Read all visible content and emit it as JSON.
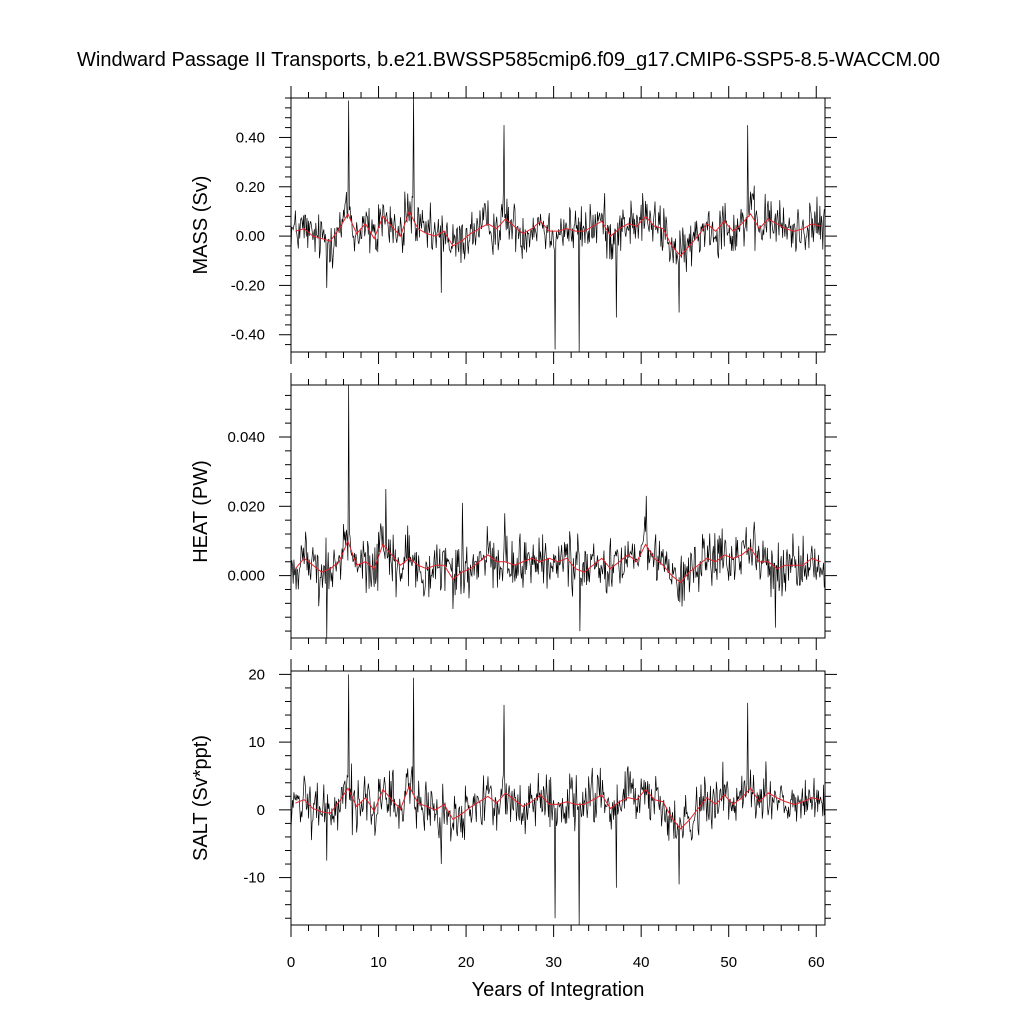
{
  "colors": {
    "raw_series": "#000000",
    "smooth_series": "#e8202a",
    "frame": "#000000"
  },
  "chart_data": {
    "title": "Windward Passage II Transports, b.e21.BWSSP585cmip6.f09_g17.CMIP6-SSP5-8.5-WACCM.00",
    "xlabel": "Years of Integration",
    "shared_x": {
      "range": [
        0,
        61
      ],
      "ticks": [
        0,
        10,
        20,
        30,
        40,
        50,
        60
      ],
      "tick_labels": [
        "0",
        "10",
        "20",
        "30",
        "40",
        "50",
        "60"
      ]
    },
    "panels": [
      {
        "type": "line",
        "ylabel": "MASS (Sv)",
        "ylim": [
          -0.47,
          0.56
        ],
        "yticks": [
          -0.4,
          -0.2,
          0.0,
          0.2,
          0.4
        ],
        "ytick_labels": [
          "-0.40",
          "-0.20",
          "0.00",
          "0.20",
          "0.40"
        ],
        "series": [
          {
            "role": "monthly",
            "color": "#000000",
            "sigma": 0.07,
            "baseline": 0.02,
            "spikes": [
              [
                6.6,
                0.55
              ],
              [
                14.0,
                0.57
              ],
              [
                24.3,
                0.45
              ],
              [
                52.2,
                0.45
              ],
              [
                30.2,
                -0.46
              ],
              [
                32.9,
                -0.47
              ],
              [
                37.2,
                -0.33
              ],
              [
                44.3,
                -0.31
              ],
              [
                4.1,
                -0.21
              ],
              [
                17.2,
                -0.23
              ]
            ]
          },
          {
            "role": "annual_mean",
            "color": "#e8202a",
            "x": [
              0.5,
              1.5,
              2.5,
              3.5,
              4.5,
              5.5,
              6.5,
              7.5,
              8.5,
              9.5,
              10.5,
              11.5,
              12.5,
              13.5,
              14.5,
              15.5,
              16.5,
              17.5,
              18.5,
              19.5,
              20.5,
              21.5,
              22.5,
              23.5,
              24.5,
              25.5,
              26.5,
              27.5,
              28.5,
              29.5,
              30.5,
              31.5,
              32.5,
              33.5,
              34.5,
              35.5,
              36.5,
              37.5,
              38.5,
              39.5,
              40.5,
              41.5,
              42.5,
              43.5,
              44.5,
              45.5,
              46.5,
              47.5,
              48.5,
              49.5,
              50.5,
              51.5,
              52.5,
              53.5,
              54.5,
              55.5,
              56.5,
              57.5,
              58.5,
              59.5,
              60.5
            ],
            "values": [
              0.02,
              0.03,
              0.0,
              -0.01,
              -0.02,
              0.03,
              0.09,
              0.01,
              0.05,
              -0.01,
              0.08,
              0.04,
              0.0,
              0.1,
              0.03,
              0.01,
              0.0,
              0.02,
              -0.04,
              -0.02,
              0.01,
              0.03,
              0.05,
              0.03,
              0.07,
              0.04,
              0.01,
              0.03,
              0.06,
              0.02,
              0.02,
              0.03,
              0.02,
              0.02,
              0.04,
              0.06,
              0.0,
              0.03,
              0.05,
              0.04,
              0.08,
              0.04,
              0.03,
              -0.04,
              -0.08,
              -0.04,
              0.0,
              0.05,
              0.02,
              0.06,
              0.02,
              0.05,
              0.09,
              0.03,
              0.07,
              0.05,
              0.03,
              0.02,
              0.03,
              0.05,
              0.04
            ]
          }
        ]
      },
      {
        "type": "line",
        "ylabel": "HEAT (PW)",
        "ylim": [
          -0.018,
          0.055
        ],
        "yticks": [
          0.0,
          0.02,
          0.04
        ],
        "ytick_labels": [
          "0.000",
          "0.020",
          "0.040"
        ],
        "series": [
          {
            "role": "monthly",
            "color": "#000000",
            "sigma": 0.0055,
            "baseline": 0.003,
            "spikes": [
              [
                6.6,
                0.055
              ],
              [
                10.8,
                0.025
              ],
              [
                19.6,
                0.021
              ],
              [
                24.4,
                0.018
              ],
              [
                40.6,
                0.023
              ],
              [
                4.1,
                -0.018
              ],
              [
                33.0,
                -0.016
              ],
              [
                55.3,
                -0.015
              ]
            ]
          },
          {
            "role": "annual_mean",
            "color": "#e8202a",
            "x": [
              0.5,
              1.5,
              2.5,
              3.5,
              4.5,
              5.5,
              6.5,
              7.5,
              8.5,
              9.5,
              10.5,
              11.5,
              12.5,
              13.5,
              14.5,
              15.5,
              16.5,
              17.5,
              18.5,
              19.5,
              20.5,
              21.5,
              22.5,
              23.5,
              24.5,
              25.5,
              26.5,
              27.5,
              28.5,
              29.5,
              30.5,
              31.5,
              32.5,
              33.5,
              34.5,
              35.5,
              36.5,
              37.5,
              38.5,
              39.5,
              40.5,
              41.5,
              42.5,
              43.5,
              44.5,
              45.5,
              46.5,
              47.5,
              48.5,
              49.5,
              50.5,
              51.5,
              52.5,
              53.5,
              54.5,
              55.5,
              56.5,
              57.5,
              58.5,
              59.5,
              60.5
            ],
            "values": [
              0.002,
              0.005,
              0.003,
              0.001,
              0.002,
              0.004,
              0.01,
              0.003,
              0.004,
              0.002,
              0.009,
              0.006,
              0.003,
              0.005,
              0.003,
              0.002,
              0.003,
              0.003,
              -0.001,
              0.001,
              0.002,
              0.004,
              0.006,
              0.004,
              0.004,
              0.003,
              0.004,
              0.005,
              0.004,
              0.005,
              0.004,
              0.005,
              0.002,
              0.001,
              0.003,
              0.005,
              0.002,
              0.004,
              0.006,
              0.004,
              0.009,
              0.005,
              0.003,
              0.0,
              -0.002,
              0.001,
              0.003,
              0.005,
              0.004,
              0.006,
              0.005,
              0.006,
              0.008,
              0.004,
              0.004,
              0.002,
              0.003,
              0.003,
              0.003,
              0.005,
              0.004
            ]
          }
        ]
      },
      {
        "type": "line",
        "ylabel": "SALT (Sv*ppt)",
        "ylim": [
          -17,
          20.5
        ],
        "yticks": [
          -10,
          0,
          10,
          20
        ],
        "ytick_labels": [
          "-10",
          "0",
          "10",
          "20"
        ],
        "series": [
          {
            "role": "monthly",
            "color": "#000000",
            "sigma": 2.6,
            "baseline": 0.6,
            "spikes": [
              [
                6.6,
                20
              ],
              [
                14.0,
                19.5
              ],
              [
                24.3,
                15.5
              ],
              [
                52.2,
                15.8
              ],
              [
                30.2,
                -16
              ],
              [
                32.9,
                -17
              ],
              [
                37.2,
                -11.5
              ],
              [
                44.3,
                -11
              ],
              [
                4.1,
                -7.5
              ],
              [
                17.2,
                -8
              ]
            ]
          },
          {
            "role": "annual_mean",
            "color": "#e8202a",
            "x": [
              0.5,
              1.5,
              2.5,
              3.5,
              4.5,
              5.5,
              6.5,
              7.5,
              8.5,
              9.5,
              10.5,
              11.5,
              12.5,
              13.5,
              14.5,
              15.5,
              16.5,
              17.5,
              18.5,
              19.5,
              20.5,
              21.5,
              22.5,
              23.5,
              24.5,
              25.5,
              26.5,
              27.5,
              28.5,
              29.5,
              30.5,
              31.5,
              32.5,
              33.5,
              34.5,
              35.5,
              36.5,
              37.5,
              38.5,
              39.5,
              40.5,
              41.5,
              42.5,
              43.5,
              44.5,
              45.5,
              46.5,
              47.5,
              48.5,
              49.5,
              50.5,
              51.5,
              52.5,
              53.5,
              54.5,
              55.5,
              56.5,
              57.5,
              58.5,
              59.5,
              60.5
            ],
            "values": [
              1.0,
              1.5,
              0.2,
              -0.3,
              -0.5,
              1.2,
              3.2,
              0.5,
              1.8,
              -0.2,
              3.0,
              1.5,
              0.1,
              3.5,
              1.0,
              0.5,
              0.0,
              0.8,
              -1.4,
              -0.6,
              0.4,
              1.2,
              2.0,
              1.0,
              2.5,
              1.5,
              0.5,
              1.2,
              2.2,
              0.8,
              0.8,
              1.2,
              0.8,
              0.8,
              1.5,
              2.2,
              0.2,
              1.2,
              1.8,
              1.5,
              3.0,
              1.5,
              1.2,
              -1.2,
              -2.8,
              -1.5,
              0.2,
              1.8,
              0.8,
              2.2,
              0.8,
              1.8,
              3.2,
              1.2,
              2.5,
              1.8,
              1.2,
              0.8,
              1.2,
              1.8,
              1.5
            ]
          }
        ]
      }
    ]
  }
}
